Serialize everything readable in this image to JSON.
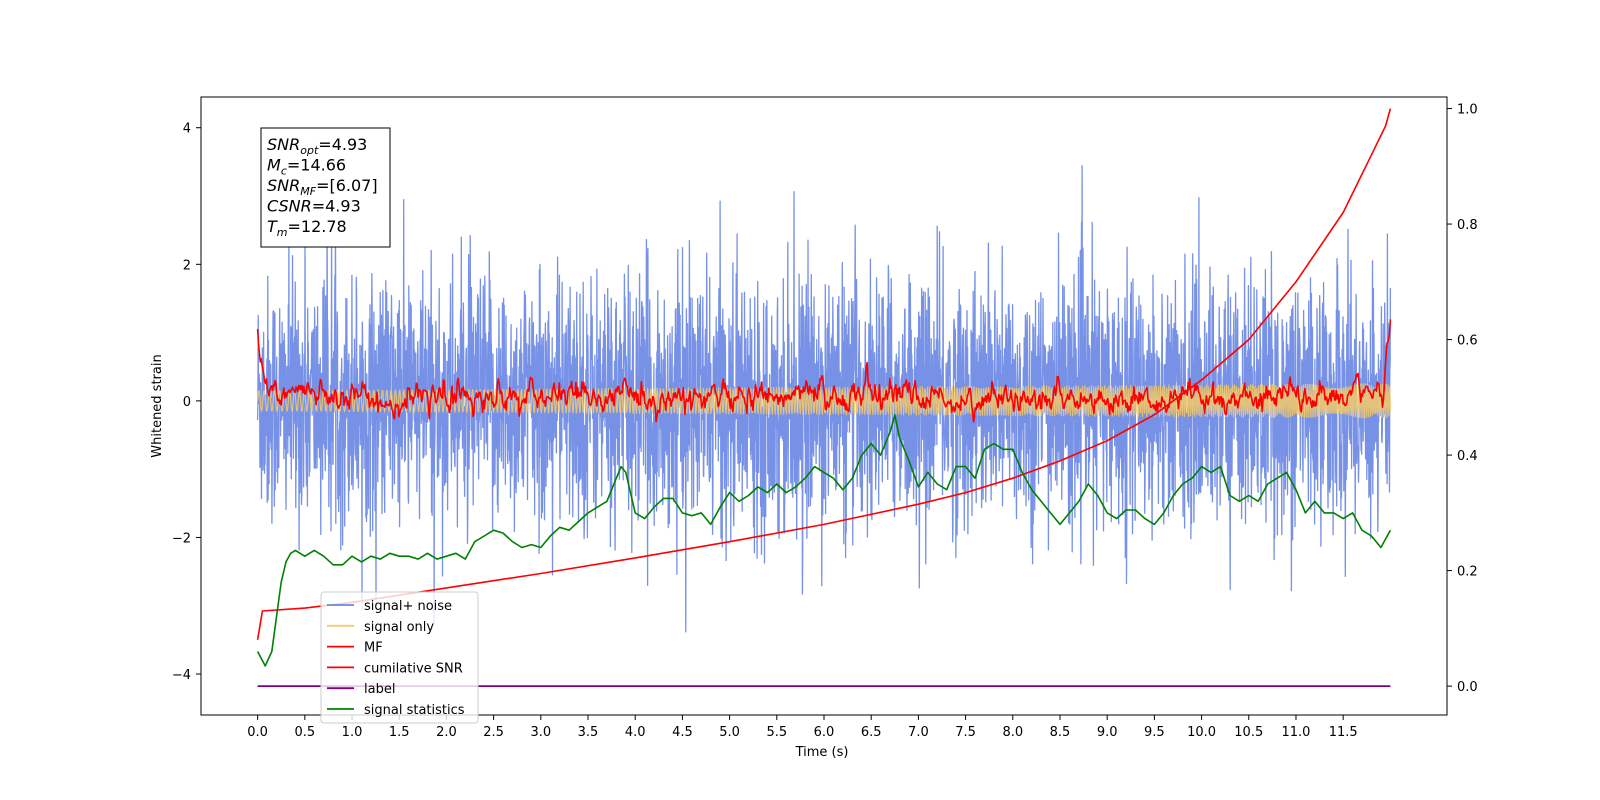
{
  "chart_data": {
    "type": "line",
    "xlabel": "Time (s)",
    "ylabel": "Whitened strain",
    "xlim": [
      -0.6,
      12.6
    ],
    "ylim": [
      -4.6,
      4.45
    ],
    "y2lim": [
      -0.05,
      1.02
    ],
    "x_ticks": [
      "0.0",
      "0.5",
      "1.0",
      "1.5",
      "2.0",
      "2.5",
      "3.0",
      "3.5",
      "4.0",
      "4.5",
      "5.0",
      "5.5",
      "6.0",
      "6.5",
      "7.0",
      "7.5",
      "8.0",
      "8.5",
      "9.0",
      "9.5",
      "10.0",
      "10.5",
      "11.0",
      "11.5"
    ],
    "y_ticks": [
      "4",
      "2",
      "0",
      "−2",
      "−4"
    ],
    "y2_ticks": [
      "1.0",
      "0.8",
      "0.6",
      "0.4",
      "0.2",
      "0.0"
    ],
    "annotations": [
      {
        "sym": "SNR",
        "sub": "opt",
        "value": "=4.93"
      },
      {
        "sym": "M",
        "sub": "c",
        "value": "=14.66"
      },
      {
        "sym": "SNR",
        "sub": "MF",
        "value": "=[6.07]"
      },
      {
        "sym": "CSNR",
        "sub": "",
        "value": "=4.93"
      },
      {
        "sym": "T",
        "sub": "m",
        "value": "=12.78"
      }
    ],
    "legend_position": "lower left",
    "series": [
      {
        "name": "signal+ noise",
        "axis": "left",
        "color": "#6a88e4",
        "style": "noise",
        "x_range": [
          0,
          12.0
        ],
        "std": 0.9,
        "amplitude_range": [
          -3.7,
          4.05
        ]
      },
      {
        "name": "signal only",
        "axis": "left",
        "color": "#f6c96a",
        "style": "chirp",
        "x_range": [
          0,
          12.0
        ],
        "amplitude": 0.25
      },
      {
        "name": "MF",
        "axis": "left",
        "color": "#ff0000",
        "style": "mf",
        "x_range": [
          0,
          12.0
        ],
        "endpoints": [
          1.0,
          0.95
        ]
      },
      {
        "name": "cumilative SNR",
        "axis": "right",
        "color": "#ff0000",
        "x": [
          0,
          0.05,
          0.5,
          1,
          2,
          3,
          4,
          5,
          6,
          7,
          7.5,
          8,
          8.5,
          9,
          9.5,
          10,
          10.5,
          11,
          11.5,
          11.8,
          11.95,
          12.0
        ],
        "y": [
          0.08,
          0.13,
          0.135,
          0.145,
          0.17,
          0.195,
          0.222,
          0.25,
          0.28,
          0.315,
          0.335,
          0.36,
          0.39,
          0.425,
          0.47,
          0.53,
          0.6,
          0.7,
          0.82,
          0.92,
          0.97,
          1.0
        ]
      },
      {
        "name": "label",
        "axis": "right",
        "color": "#800080",
        "x": [
          0,
          12.0
        ],
        "y": [
          0,
          0
        ]
      },
      {
        "name": "signal statistics",
        "axis": "right",
        "color": "#008000",
        "x": [
          0,
          0.08,
          0.15,
          0.2,
          0.25,
          0.3,
          0.35,
          0.4,
          0.5,
          0.6,
          0.7,
          0.8,
          0.9,
          1.0,
          1.1,
          1.2,
          1.3,
          1.4,
          1.5,
          1.6,
          1.7,
          1.8,
          1.9,
          2.0,
          2.1,
          2.2,
          2.3,
          2.4,
          2.5,
          2.6,
          2.7,
          2.8,
          2.9,
          3.0,
          3.1,
          3.2,
          3.3,
          3.4,
          3.5,
          3.6,
          3.7,
          3.8,
          3.85,
          3.9,
          4.0,
          4.1,
          4.2,
          4.3,
          4.4,
          4.5,
          4.6,
          4.7,
          4.8,
          4.9,
          5.0,
          5.1,
          5.2,
          5.3,
          5.4,
          5.5,
          5.6,
          5.7,
          5.8,
          5.9,
          6.0,
          6.1,
          6.2,
          6.3,
          6.4,
          6.5,
          6.6,
          6.7,
          6.75,
          6.8,
          6.9,
          7.0,
          7.1,
          7.2,
          7.3,
          7.4,
          7.5,
          7.6,
          7.7,
          7.8,
          7.9,
          8.0,
          8.1,
          8.2,
          8.3,
          8.4,
          8.5,
          8.6,
          8.7,
          8.8,
          8.9,
          9.0,
          9.1,
          9.2,
          9.3,
          9.4,
          9.5,
          9.6,
          9.7,
          9.8,
          9.9,
          10.0,
          10.1,
          10.2,
          10.3,
          10.4,
          10.5,
          10.6,
          10.7,
          10.8,
          10.9,
          11.0,
          11.1,
          11.2,
          11.3,
          11.4,
          11.5,
          11.6,
          11.7,
          11.8,
          11.9,
          12.0
        ],
        "y": [
          0.06,
          0.035,
          0.06,
          0.12,
          0.18,
          0.215,
          0.23,
          0.235,
          0.225,
          0.235,
          0.225,
          0.21,
          0.21,
          0.225,
          0.215,
          0.225,
          0.22,
          0.23,
          0.225,
          0.225,
          0.22,
          0.23,
          0.22,
          0.225,
          0.23,
          0.22,
          0.25,
          0.26,
          0.27,
          0.265,
          0.25,
          0.24,
          0.245,
          0.24,
          0.26,
          0.275,
          0.27,
          0.285,
          0.3,
          0.31,
          0.32,
          0.36,
          0.38,
          0.37,
          0.3,
          0.29,
          0.31,
          0.325,
          0.325,
          0.3,
          0.295,
          0.3,
          0.28,
          0.31,
          0.335,
          0.32,
          0.33,
          0.345,
          0.335,
          0.35,
          0.335,
          0.345,
          0.36,
          0.38,
          0.37,
          0.36,
          0.34,
          0.36,
          0.4,
          0.42,
          0.4,
          0.44,
          0.47,
          0.43,
          0.39,
          0.345,
          0.37,
          0.35,
          0.34,
          0.38,
          0.38,
          0.36,
          0.41,
          0.42,
          0.41,
          0.41,
          0.37,
          0.34,
          0.32,
          0.3,
          0.28,
          0.3,
          0.32,
          0.35,
          0.33,
          0.3,
          0.29,
          0.305,
          0.305,
          0.29,
          0.28,
          0.3,
          0.33,
          0.35,
          0.36,
          0.38,
          0.37,
          0.38,
          0.33,
          0.32,
          0.33,
          0.32,
          0.35,
          0.36,
          0.37,
          0.34,
          0.3,
          0.32,
          0.3,
          0.3,
          0.29,
          0.3,
          0.27,
          0.26,
          0.24,
          0.27
        ]
      }
    ]
  }
}
